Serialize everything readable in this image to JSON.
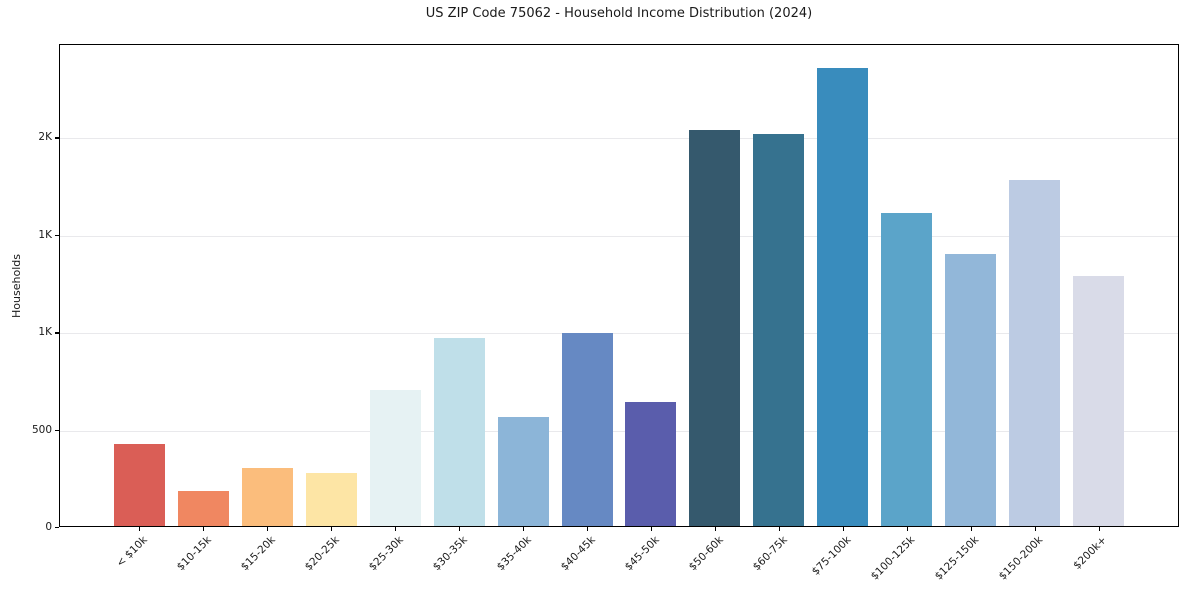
{
  "figure": {
    "title": "US ZIP Code 75062 - Household Income Distribution (2024)",
    "ylabel": "Households"
  },
  "chart_data": {
    "type": "bar",
    "title": "US ZIP Code 75062 - Household Income Distribution (2024)",
    "xlabel": "",
    "ylabel": "Households",
    "categories": [
      "< $10k",
      "$10-15k",
      "$15-20k",
      "$20-25k",
      "$25-30k",
      "$30-35k",
      "$35-40k",
      "$40-45k",
      "$45-50k",
      "$50-60k",
      "$60-75k",
      "$75-100k",
      "$100-125k",
      "$125-150k",
      "$150-200k",
      "$200k+"
    ],
    "values": [
      425,
      178,
      298,
      274,
      700,
      968,
      563,
      995,
      637,
      2042,
      2021,
      2362,
      1612,
      1404,
      1785,
      1290
    ],
    "bar_colors": [
      "#da5e56",
      "#f08761",
      "#fbbd7c",
      "#fde5a5",
      "#e6f2f3",
      "#bfdfe9",
      "#8cb5d8",
      "#6689c3",
      "#5a5dac",
      "#35596d",
      "#36728f",
      "#398cbd",
      "#5ba4c9",
      "#92b7d9",
      "#bccbe3",
      "#d9dbe8"
    ],
    "ylim": [
      0,
      2480
    ],
    "y_ticks": [
      {
        "value": 0,
        "label": "0"
      },
      {
        "value": 500,
        "label": "500"
      },
      {
        "value": 1000,
        "label": "1K"
      },
      {
        "value": 1500,
        "label": "1K"
      },
      {
        "value": 2000,
        "label": "2K"
      }
    ],
    "grid": "horizontal-only",
    "legend": "none",
    "x_label_rotation_deg": 45,
    "plot_border": "full-box",
    "background_color": "#ffffff",
    "gridline_color": "#e9e9ec"
  }
}
